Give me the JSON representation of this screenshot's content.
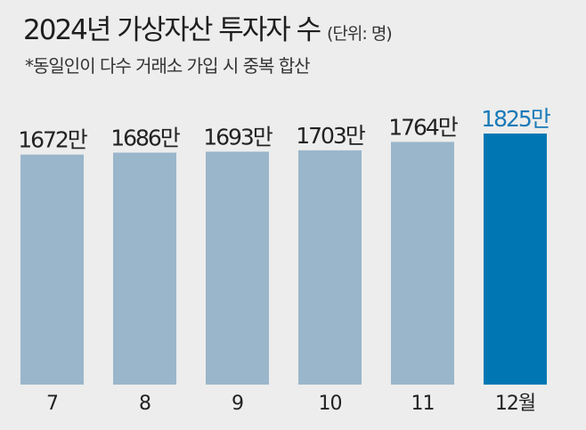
{
  "chart_data": {
    "type": "bar",
    "title": "2024년 가상자산 투자자 수",
    "unit_note": "(단위: 명)",
    "subtitle": "*동일인이 다수 거래소 가입 시 중복 합산",
    "categories": [
      "7",
      "8",
      "9",
      "10",
      "11",
      "12월"
    ],
    "values": [
      16720000,
      16860000,
      16930000,
      17030000,
      17640000,
      18250000
    ],
    "data_labels": [
      "1672만",
      "1686만",
      "1693만",
      "1703만",
      "1764만",
      "1825만"
    ],
    "highlight_index": 5,
    "xlabel": "",
    "ylabel": "",
    "ylim": [
      0,
      18250000
    ],
    "grid": false,
    "colors": {
      "bar": "#9ab6cb",
      "highlight": "#0077b3",
      "label": "#222222",
      "highlight_label": "#1a7ab8"
    }
  }
}
